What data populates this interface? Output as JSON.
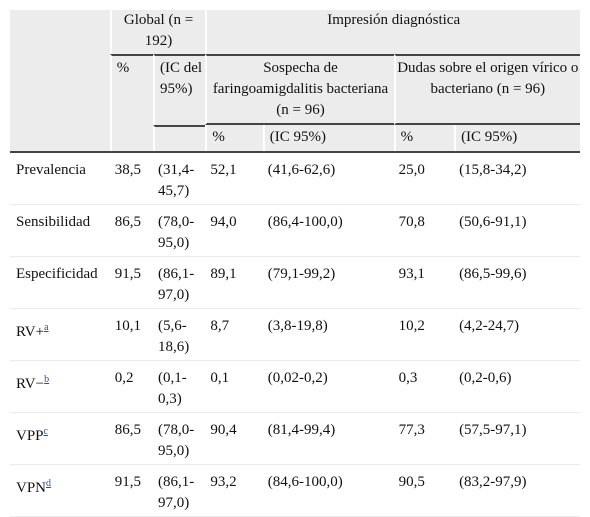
{
  "header": {
    "global": "Global (n = 192)",
    "impresion": "Impresión diagnóstica",
    "global_pct": "%",
    "global_ic": "(IC del 95%)",
    "sospecha": "Sospecha de faringoamigdalitis bacteriana (n = 96)",
    "dudas": "Dudas sobre el origen vírico o bacteriano (n = 96)",
    "sub_pct": "%",
    "sub_ic": "(IC 95%)"
  },
  "rows": [
    {
      "label": "Prevalencia",
      "sup": "",
      "g": "38,5",
      "gic": "(31,4-45,7)",
      "s": "52,1",
      "sic": "(41,6-62,6)",
      "d": "25,0",
      "dic": "(15,8-34,2)"
    },
    {
      "label": "Sensibilidad",
      "sup": "",
      "g": "86,5",
      "gic": "(78,0-95,0)",
      "s": "94,0",
      "sic": "(86,4-100,0)",
      "d": "70,8",
      "dic": "(50,6-91,1)"
    },
    {
      "label": "Especificidad",
      "sup": "",
      "g": "91,5",
      "gic": "(86,1-97,0)",
      "s": "89,1",
      "sic": "(79,1-99,2)",
      "d": "93,1",
      "dic": "(86,5-99,6)"
    },
    {
      "label": "RV+",
      "sup": "a",
      "g": "10,1",
      "gic": "(5,6-18,6)",
      "s": "8,7",
      "sic": "(3,8-19,8)",
      "d": "10,2",
      "dic": "(4,2-24,7)"
    },
    {
      "label": "RV−",
      "sup": "b",
      "g": "0,2",
      "gic": "(0,1-0,3)",
      "s": "0,1",
      "sic": "(0,02-0,2)",
      "d": "0,3",
      "dic": "(0,2-0,6)"
    },
    {
      "label": "VPP",
      "sup": "c",
      "g": "86,5",
      "gic": "(78,0-95,0)",
      "s": "90,4",
      "sic": "(81,4-99,4)",
      "d": "77,3",
      "dic": "(57,5-97,1)"
    },
    {
      "label": "VPN",
      "sup": "d",
      "g": "91,5",
      "gic": "(86,1-97,0)",
      "s": "93,2",
      "sic": "(84,6-100,0)",
      "d": "90,5",
      "dic": "(83,2-97,9)"
    }
  ]
}
